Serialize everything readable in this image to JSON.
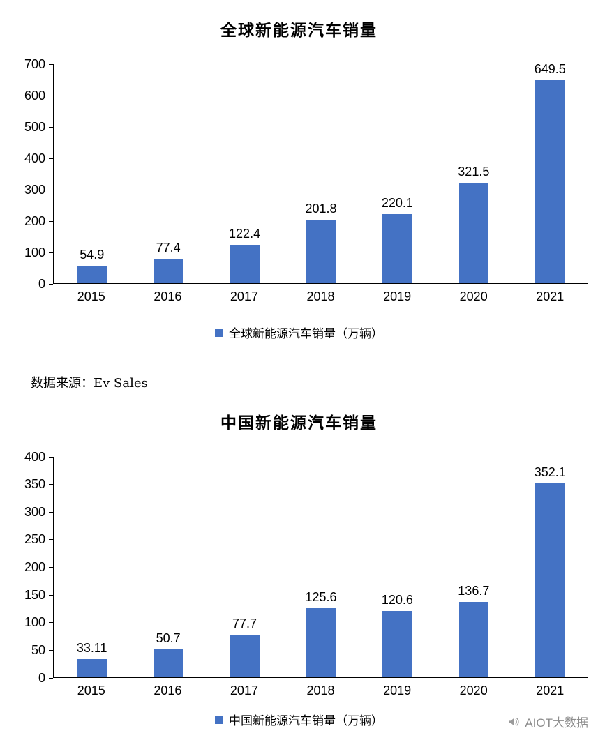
{
  "page": {
    "background": "#ffffff"
  },
  "colors": {
    "bar": "#4472c4",
    "axis": "#000000",
    "text": "#000000",
    "watermark": "#8c8c8c"
  },
  "chart_data": [
    {
      "type": "bar",
      "title": "全球新能源汽车销量",
      "categories": [
        "2015",
        "2016",
        "2017",
        "2018",
        "2019",
        "2020",
        "2021"
      ],
      "values": [
        54.9,
        77.4,
        122.4,
        201.8,
        220.1,
        321.5,
        649.5
      ],
      "legend": "全球新能源汽车销量（万辆）",
      "xlabel": "",
      "ylabel": "",
      "ylim": [
        0,
        700
      ],
      "ytick_step": 100,
      "bar_color": "#4472c4",
      "grid": false,
      "legend_position": "bottom"
    },
    {
      "type": "bar",
      "title": "中国新能源汽车销量",
      "categories": [
        "2015",
        "2016",
        "2017",
        "2018",
        "2019",
        "2020",
        "2021"
      ],
      "values": [
        33.11,
        50.7,
        77.7,
        125.6,
        120.6,
        136.7,
        352.1
      ],
      "legend": "中国新能源汽车销量（万辆）",
      "xlabel": "",
      "ylabel": "",
      "ylim": [
        0,
        400
      ],
      "ytick_step": 50,
      "bar_color": "#4472c4",
      "grid": false,
      "legend_position": "bottom"
    }
  ],
  "source_note": "数据来源：Ev Sales",
  "watermark": {
    "icon": "megaphone-icon",
    "label": "AIOT大数据",
    "color": "#8c8c8c"
  }
}
